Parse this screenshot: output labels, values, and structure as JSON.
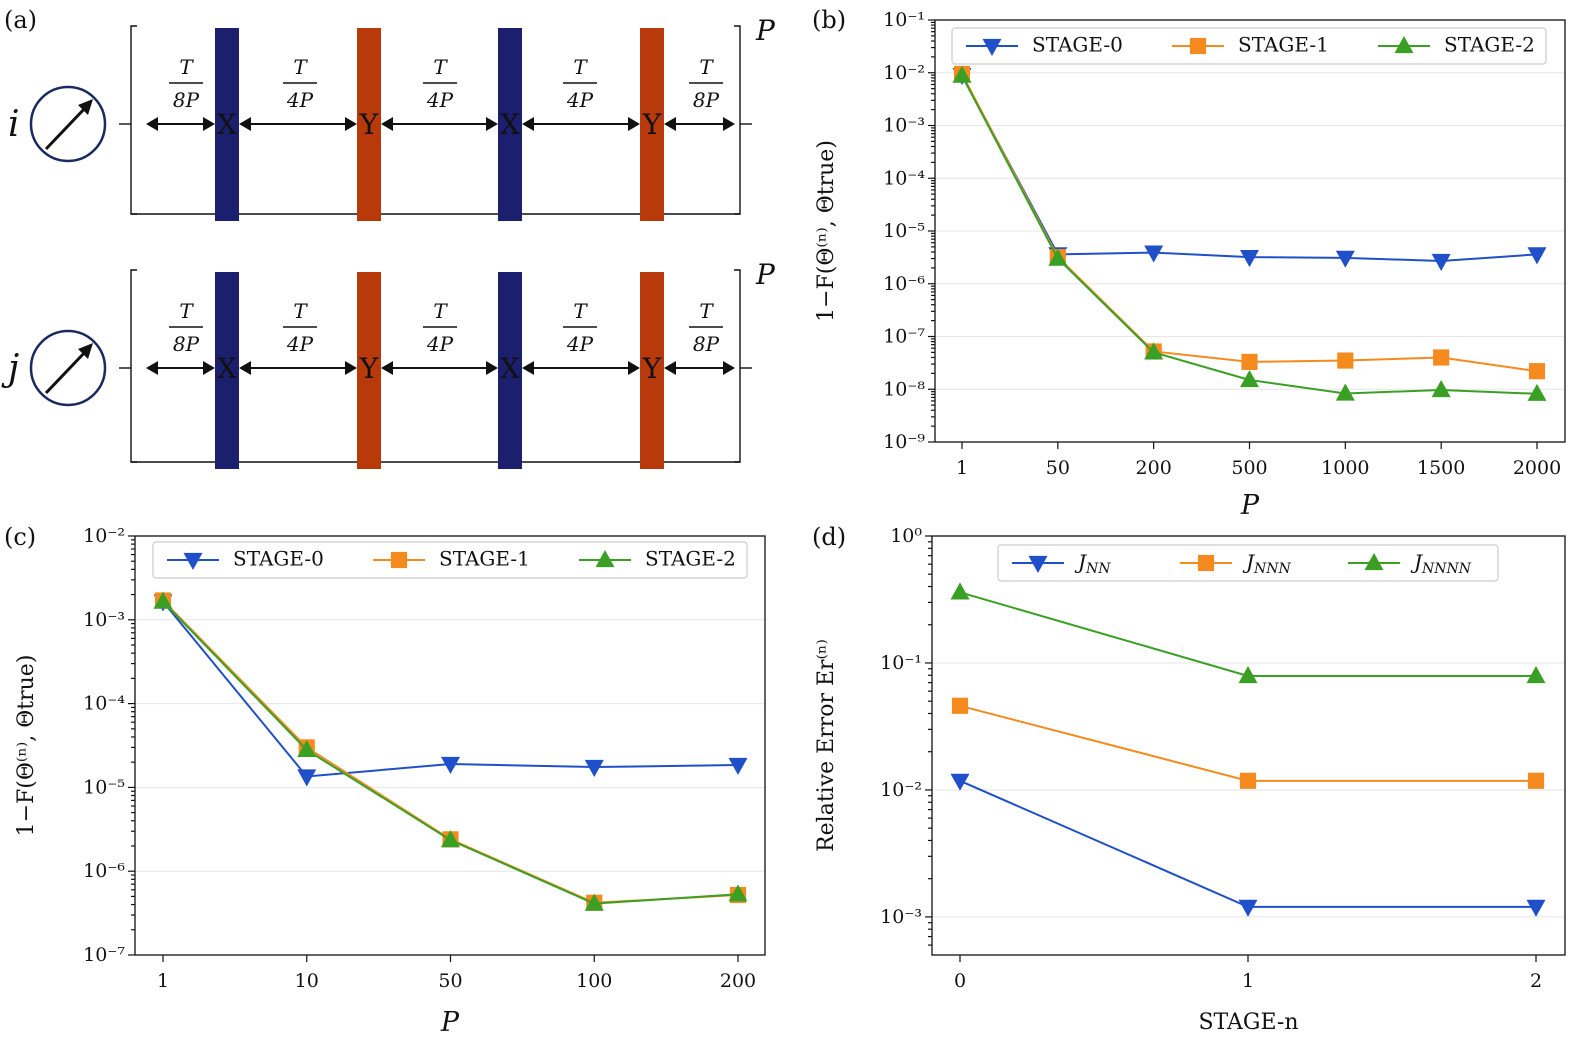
{
  "panel_labels": {
    "a": "(a)",
    "b": "(b)",
    "c": "(c)",
    "d": "(d)"
  },
  "circuit": {
    "rows": [
      {
        "qubit": "i",
        "repeat": "P"
      },
      {
        "qubit": "j",
        "repeat": "P"
      }
    ],
    "intervals": [
      {
        "num": "T",
        "den": "8P"
      },
      {
        "num": "T",
        "den": "4P"
      },
      {
        "num": "T",
        "den": "4P"
      },
      {
        "num": "T",
        "den": "4P"
      },
      {
        "num": "T",
        "den": "8P"
      }
    ],
    "pulses": [
      {
        "label": "X",
        "color": "#1c1f6e"
      },
      {
        "label": "Y",
        "color": "#b83a0b"
      },
      {
        "label": "X",
        "color": "#1c1f6e"
      },
      {
        "label": "Y",
        "color": "#b83a0b"
      }
    ]
  },
  "chart_data": [
    {
      "id": "b",
      "type": "line",
      "scale": "log",
      "categories": [
        "1",
        "50",
        "200",
        "500",
        "1000",
        "1500",
        "2000"
      ],
      "ylim_exp": [
        -9,
        -1
      ],
      "ytick_labels": [
        "10⁻¹",
        "10⁻²",
        "10⁻³",
        "10⁻⁴",
        "10⁻⁵",
        "10⁻⁶",
        "10⁻⁷",
        "10⁻⁸",
        "10⁻⁹"
      ],
      "xlabel": "P",
      "ylabel": "1−F(Θ⁽ⁿ⁾, Θtrue)",
      "legend_pos": "top",
      "series": [
        {
          "name": "STAGE-0",
          "color": "#1f4fc9",
          "marker": "tri-down",
          "values": [
            0.009,
            3.6e-06,
            3.9e-06,
            3.2e-06,
            3.1e-06,
            2.7e-06,
            3.6e-06
          ]
        },
        {
          "name": "STAGE-1",
          "color": "#f58a1f",
          "marker": "square",
          "values": [
            0.0095,
            3.2e-06,
            5.2e-08,
            3.3e-08,
            3.5e-08,
            4e-08,
            2.2e-08
          ]
        },
        {
          "name": "STAGE-2",
          "color": "#3aa024",
          "marker": "tri-up",
          "values": [
            0.0088,
            3e-06,
            5e-08,
            1.5e-08,
            8.3e-09,
            9.7e-09,
            8.2e-09
          ]
        }
      ]
    },
    {
      "id": "c",
      "type": "line",
      "scale": "log",
      "categories": [
        "1",
        "10",
        "50",
        "100",
        "200"
      ],
      "ylim_exp": [
        -7,
        -2
      ],
      "ytick_labels": [
        "10⁻²",
        "10⁻³",
        "10⁻⁴",
        "10⁻⁵",
        "10⁻⁶",
        "10⁻⁷"
      ],
      "xlabel": "P",
      "ylabel": "1−F(Θ⁽ⁿ⁾, Θtrue)",
      "legend_pos": "top",
      "series": [
        {
          "name": "STAGE-0",
          "color": "#1f4fc9",
          "marker": "tri-down",
          "values": [
            0.00165,
            1.35e-05,
            1.9e-05,
            1.75e-05,
            1.85e-05
          ]
        },
        {
          "name": "STAGE-1",
          "color": "#f58a1f",
          "marker": "square",
          "values": [
            0.0017,
            3e-05,
            2.4e-06,
            4.2e-07,
            5.2e-07
          ]
        },
        {
          "name": "STAGE-2",
          "color": "#3aa024",
          "marker": "tri-up",
          "values": [
            0.00165,
            2.8e-05,
            2.35e-06,
            4.1e-07,
            5.3e-07
          ]
        }
      ]
    },
    {
      "id": "d",
      "type": "line",
      "scale": "log",
      "categories": [
        "0",
        "1",
        "2"
      ],
      "ylim_exp": [
        -3.3,
        0
      ],
      "tick_exps": [
        0,
        -1,
        -2,
        -3
      ],
      "ytick_labels": [
        "10⁰",
        "10⁻¹",
        "10⁻²",
        "10⁻³"
      ],
      "xlabel": "STAGE-n",
      "ylabel": "Relative Error Er⁽ⁿ⁾",
      "legend_pos": "top",
      "series": [
        {
          "name": "J_NN",
          "color": "#1f4fc9",
          "marker": "tri-down",
          "values": [
            0.0118,
            0.0012,
            0.0012
          ]
        },
        {
          "name": "J_NNN",
          "color": "#f58a1f",
          "marker": "square",
          "values": [
            0.046,
            0.0118,
            0.0118
          ]
        },
        {
          "name": "J_NNNN",
          "color": "#3aa024",
          "marker": "tri-up",
          "values": [
            0.36,
            0.079,
            0.079
          ]
        }
      ]
    }
  ]
}
